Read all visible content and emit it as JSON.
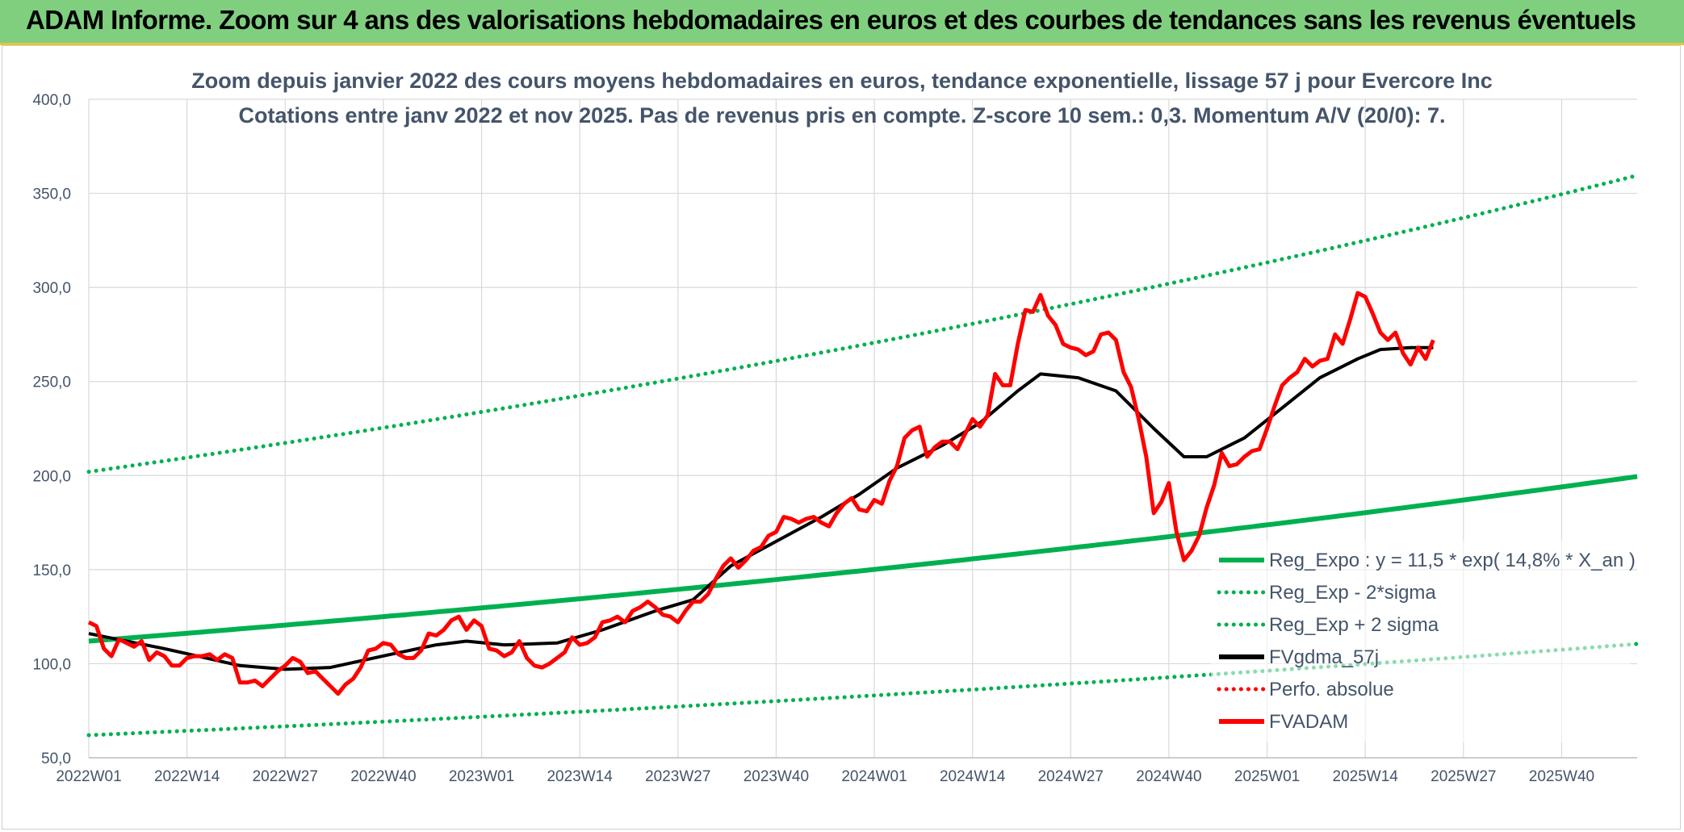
{
  "header": {
    "title": "ADAM Informe. Zoom sur 4 ans des valorisations hebdomadaires en euros et des courbes de tendances sans les revenus éventuels"
  },
  "colors": {
    "banner": "#7fcf7f",
    "trend": "#00b050",
    "price": "#ff0000",
    "smooth": "#000000",
    "grid": "#d9d9d9",
    "text": "#44546a"
  },
  "chart_data": {
    "type": "line",
    "title_lines": [
      "Zoom depuis janvier 2022 des cours moyens hebdomadaires en euros, tendance exponentielle, lissage 57 j pour Evercore Inc",
      "Cotations entre janv 2022 et nov 2025. Pas de revenus pris en compte. Z-score 10 sem.: 0,3. Momentum A/V (20/0): 7."
    ],
    "ylim": [
      50,
      400
    ],
    "y_ticks": [
      "50,0",
      "100,0",
      "150,0",
      "200,0",
      "250,0",
      "300,0",
      "350,0",
      "400,0"
    ],
    "x_ticks": [
      "2022W01",
      "2022W14",
      "2022W27",
      "2022W40",
      "2023W01",
      "2023W14",
      "2023W27",
      "2023W40",
      "2024W01",
      "2024W14",
      "2024W27",
      "2024W40",
      "2025W01",
      "2025W14",
      "2025W27",
      "2025W40"
    ],
    "n_weeks": 206,
    "legend": [
      {
        "label": "Reg_Expo : y = 11,5 * exp( 14,8% *  X_an )",
        "style": "solid",
        "color": "#00b050"
      },
      {
        "label": "Reg_Exp - 2*sigma",
        "style": "dotted",
        "color": "#00b050"
      },
      {
        "label": "Reg_Exp + 2 sigma",
        "style": "dotted",
        "color": "#00b050"
      },
      {
        "label": "FVgdma_57j",
        "style": "solid",
        "color": "#000000"
      },
      {
        "label": "Perfo. absolue",
        "style": "dotted",
        "color": "#ff0000"
      },
      {
        "label": "FVADAM",
        "style": "solid",
        "color": "#ff0000"
      }
    ],
    "series": {
      "reg_expo": {
        "name": "Reg_Expo",
        "start": 112,
        "end": 199.5
      },
      "reg_minus": {
        "name": "Reg_Exp - 2*sigma",
        "start": 62,
        "end": 110.5
      },
      "reg_plus": {
        "name": "Reg_Exp + 2 sigma",
        "start": 202,
        "end": 359.5
      },
      "fvadam_keypoints": [
        [
          0,
          122
        ],
        [
          2,
          120
        ],
        [
          4,
          108
        ],
        [
          6,
          104
        ],
        [
          8,
          113
        ],
        [
          10,
          111
        ],
        [
          12,
          109
        ],
        [
          14,
          112
        ],
        [
          16,
          102
        ],
        [
          18,
          106
        ],
        [
          20,
          104
        ],
        [
          22,
          99
        ],
        [
          24,
          99
        ],
        [
          26,
          103
        ],
        [
          28,
          104
        ],
        [
          30,
          104
        ],
        [
          32,
          105
        ],
        [
          34,
          102
        ],
        [
          36,
          105
        ],
        [
          38,
          103
        ],
        [
          40,
          90
        ],
        [
          42,
          90
        ],
        [
          44,
          91
        ],
        [
          46,
          88
        ],
        [
          48,
          92
        ],
        [
          50,
          96
        ],
        [
          52,
          99
        ],
        [
          54,
          103
        ],
        [
          56,
          101
        ],
        [
          58,
          95
        ],
        [
          60,
          96
        ],
        [
          62,
          92
        ],
        [
          64,
          88
        ],
        [
          66,
          84
        ],
        [
          68,
          89
        ],
        [
          70,
          92
        ],
        [
          72,
          98
        ],
        [
          74,
          107
        ],
        [
          76,
          108
        ],
        [
          78,
          111
        ],
        [
          80,
          110
        ],
        [
          82,
          105
        ],
        [
          84,
          103
        ],
        [
          86,
          103
        ],
        [
          88,
          107
        ],
        [
          90,
          116
        ],
        [
          92,
          115
        ],
        [
          94,
          118
        ],
        [
          96,
          123
        ],
        [
          98,
          125
        ],
        [
          100,
          118
        ],
        [
          102,
          123
        ],
        [
          104,
          120
        ],
        [
          106,
          108
        ],
        [
          108,
          107
        ],
        [
          110,
          104
        ],
        [
          112,
          106
        ],
        [
          114,
          112
        ],
        [
          116,
          103
        ],
        [
          118,
          99
        ],
        [
          120,
          98
        ],
        [
          122,
          100
        ],
        [
          124,
          103
        ],
        [
          126,
          106
        ],
        [
          128,
          114
        ],
        [
          130,
          110
        ],
        [
          132,
          111
        ],
        [
          134,
          114
        ],
        [
          136,
          122
        ],
        [
          138,
          123
        ],
        [
          140,
          125
        ],
        [
          142,
          122
        ],
        [
          144,
          128
        ],
        [
          146,
          130
        ],
        [
          148,
          133
        ],
        [
          150,
          130
        ],
        [
          152,
          126
        ],
        [
          154,
          125
        ],
        [
          156,
          122
        ],
        [
          158,
          128
        ],
        [
          160,
          133
        ],
        [
          162,
          133
        ],
        [
          164,
          137
        ],
        [
          166,
          145
        ],
        [
          168,
          152
        ],
        [
          170,
          156
        ],
        [
          172,
          151
        ],
        [
          174,
          155
        ],
        [
          176,
          160
        ],
        [
          178,
          162
        ],
        [
          180,
          168
        ],
        [
          182,
          170
        ],
        [
          184,
          178
        ],
        [
          186,
          177
        ],
        [
          188,
          175
        ],
        [
          190,
          177
        ],
        [
          192,
          178
        ],
        [
          194,
          175
        ],
        [
          196,
          173
        ],
        [
          198,
          180
        ],
        [
          200,
          185
        ],
        [
          202,
          188
        ],
        [
          204,
          182
        ],
        [
          206,
          181
        ],
        [
          208,
          187
        ],
        [
          210,
          185
        ],
        [
          212,
          197
        ],
        [
          214,
          205
        ],
        [
          216,
          220
        ],
        [
          218,
          224
        ],
        [
          220,
          226
        ],
        [
          222,
          210
        ],
        [
          224,
          215
        ],
        [
          226,
          218
        ],
        [
          228,
          218
        ],
        [
          230,
          214
        ],
        [
          232,
          222
        ],
        [
          234,
          230
        ],
        [
          236,
          226
        ],
        [
          238,
          232
        ],
        [
          240,
          254
        ],
        [
          242,
          248
        ],
        [
          244,
          248
        ],
        [
          246,
          270
        ],
        [
          248,
          288
        ],
        [
          250,
          287
        ],
        [
          252,
          296
        ],
        [
          254,
          285
        ],
        [
          256,
          280
        ],
        [
          258,
          270
        ],
        [
          260,
          268
        ],
        [
          262,
          267
        ],
        [
          264,
          264
        ],
        [
          266,
          266
        ],
        [
          268,
          275
        ],
        [
          270,
          276
        ],
        [
          272,
          272
        ],
        [
          274,
          255
        ],
        [
          276,
          247
        ],
        [
          278,
          230
        ],
        [
          280,
          210
        ],
        [
          282,
          180
        ],
        [
          284,
          186
        ],
        [
          286,
          196
        ],
        [
          288,
          170
        ],
        [
          290,
          155
        ],
        [
          292,
          160
        ],
        [
          294,
          168
        ],
        [
          296,
          183
        ],
        [
          298,
          195
        ],
        [
          300,
          212
        ],
        [
          302,
          205
        ],
        [
          304,
          206
        ],
        [
          306,
          210
        ],
        [
          308,
          213
        ],
        [
          310,
          214
        ],
        [
          312,
          225
        ],
        [
          314,
          237
        ],
        [
          316,
          248
        ],
        [
          318,
          252
        ],
        [
          320,
          255
        ],
        [
          322,
          262
        ],
        [
          324,
          258
        ],
        [
          326,
          261
        ],
        [
          328,
          262
        ],
        [
          330,
          275
        ],
        [
          332,
          270
        ],
        [
          334,
          283
        ],
        [
          336,
          297
        ],
        [
          338,
          295
        ],
        [
          340,
          286
        ],
        [
          342,
          276
        ],
        [
          344,
          272
        ],
        [
          346,
          276
        ],
        [
          348,
          265
        ],
        [
          350,
          259
        ],
        [
          352,
          268
        ],
        [
          354,
          262
        ],
        [
          356,
          272
        ]
      ],
      "fvgdma_keypoints": [
        [
          0,
          116
        ],
        [
          20,
          108
        ],
        [
          40,
          99
        ],
        [
          52,
          97
        ],
        [
          64,
          98
        ],
        [
          80,
          105
        ],
        [
          92,
          110
        ],
        [
          100,
          112
        ],
        [
          110,
          110
        ],
        [
          124,
          111
        ],
        [
          136,
          118
        ],
        [
          150,
          128
        ],
        [
          160,
          134
        ],
        [
          170,
          152
        ],
        [
          182,
          165
        ],
        [
          194,
          178
        ],
        [
          204,
          190
        ],
        [
          214,
          204
        ],
        [
          226,
          216
        ],
        [
          236,
          228
        ],
        [
          246,
          245
        ],
        [
          252,
          254
        ],
        [
          262,
          252
        ],
        [
          272,
          245
        ],
        [
          282,
          225
        ],
        [
          290,
          210
        ],
        [
          296,
          210
        ],
        [
          306,
          220
        ],
        [
          316,
          236
        ],
        [
          326,
          252
        ],
        [
          336,
          262
        ],
        [
          342,
          267
        ],
        [
          350,
          268
        ],
        [
          356,
          268
        ]
      ]
    }
  }
}
